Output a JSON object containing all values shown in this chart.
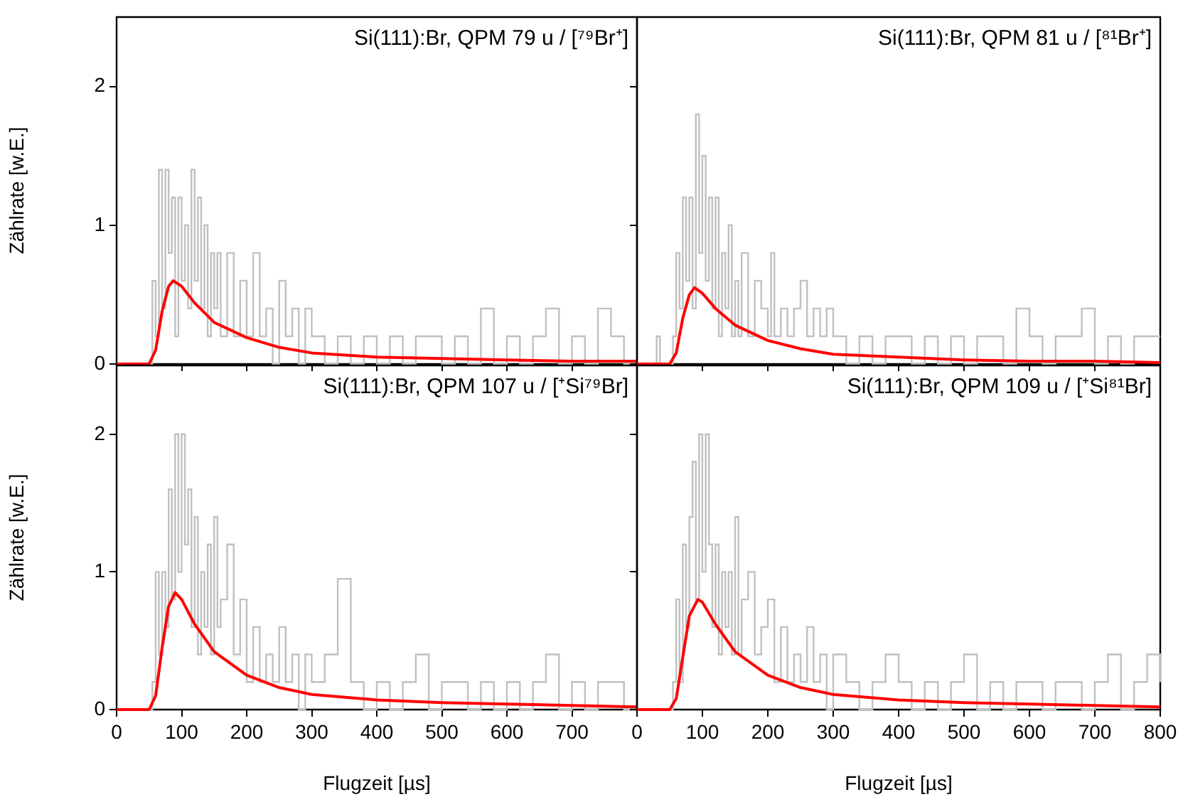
{
  "chart_data": [
    {
      "type": "step",
      "title": "Si(111):Br, QPM 79 u / [⁷⁹Br⁺]",
      "ylabel": "Zählrate [w.E.]",
      "xlim": [
        0,
        800
      ],
      "ylim": [
        0,
        2.5
      ],
      "xticks": [
        0,
        100,
        200,
        300,
        400,
        500,
        600,
        700,
        800
      ],
      "yticks": [
        0,
        1,
        2
      ],
      "tick_labels": "y",
      "grid": false,
      "legend": false,
      "series": [
        {
          "type": "step",
          "color": "#c0c0c0",
          "x": [
            0,
            50,
            55,
            60,
            65,
            70,
            75,
            80,
            85,
            90,
            95,
            100,
            105,
            110,
            115,
            120,
            125,
            130,
            135,
            140,
            145,
            150,
            155,
            160,
            170,
            180,
            190,
            200,
            210,
            220,
            230,
            240,
            250,
            260,
            270,
            280,
            290,
            300,
            320,
            340,
            360,
            380,
            400,
            420,
            440,
            460,
            480,
            500,
            520,
            540,
            560,
            580,
            600,
            620,
            640,
            660,
            680,
            700,
            720,
            740,
            760,
            780,
            800
          ],
          "values": [
            0,
            0,
            0.6,
            0.2,
            1.4,
            0.4,
            1.4,
            0.8,
            1.2,
            0.2,
            1.2,
            0.6,
            1.0,
            0.4,
            1.4,
            0.6,
            1.2,
            0.4,
            1.0,
            0.2,
            0.8,
            0.4,
            0.8,
            0.2,
            0.8,
            0.2,
            0.6,
            0.2,
            0.8,
            0.2,
            0.4,
            0,
            0.6,
            0.2,
            0.4,
            0,
            0.4,
            0.2,
            0,
            0.2,
            0,
            0.2,
            0,
            0.2,
            0,
            0.2,
            0.2,
            0,
            0.2,
            0,
            0.4,
            0,
            0.2,
            0,
            0.2,
            0.4,
            0,
            0.2,
            0,
            0.4,
            0.2,
            0,
            0.2
          ]
        },
        {
          "type": "line",
          "color": "#ff0000",
          "x": [
            0,
            50,
            60,
            70,
            80,
            87,
            100,
            120,
            150,
            200,
            250,
            300,
            400,
            500,
            600,
            700,
            800
          ],
          "values": [
            0,
            0,
            0.1,
            0.38,
            0.56,
            0.6,
            0.56,
            0.44,
            0.3,
            0.19,
            0.12,
            0.08,
            0.05,
            0.04,
            0.03,
            0.02,
            0.02
          ]
        }
      ]
    },
    {
      "type": "step",
      "title": "Si(111):Br, QPM 81 u / [⁸¹Br⁺]",
      "xlim": [
        0,
        800
      ],
      "ylim": [
        0,
        2.5
      ],
      "xticks": [
        0,
        100,
        200,
        300,
        400,
        500,
        600,
        700,
        800
      ],
      "yticks": [
        0,
        1,
        2
      ],
      "tick_labels": false,
      "grid": false,
      "legend": false,
      "series": [
        {
          "type": "step",
          "color": "#c0c0c0",
          "x": [
            0,
            30,
            35,
            50,
            55,
            60,
            65,
            70,
            75,
            80,
            85,
            90,
            95,
            100,
            105,
            110,
            115,
            120,
            125,
            130,
            135,
            140,
            145,
            150,
            155,
            160,
            170,
            180,
            190,
            200,
            205,
            210,
            220,
            230,
            240,
            250,
            260,
            270,
            280,
            290,
            300,
            320,
            340,
            360,
            380,
            400,
            420,
            440,
            460,
            480,
            500,
            520,
            540,
            560,
            580,
            600,
            620,
            640,
            660,
            680,
            700,
            720,
            740,
            760,
            780,
            800
          ],
          "values": [
            0,
            0.2,
            0,
            0,
            0.2,
            0.8,
            0.4,
            1.2,
            0.6,
            1.2,
            0.4,
            1.8,
            0.8,
            1.5,
            0.6,
            1.2,
            0.4,
            1.2,
            0.2,
            0.8,
            0.4,
            1.0,
            0.2,
            0.6,
            0.2,
            0.8,
            0.2,
            0.6,
            0.4,
            0.2,
            0.8,
            0.2,
            0.4,
            0.2,
            0.4,
            0.6,
            0.2,
            0.4,
            0.2,
            0.4,
            0.2,
            0,
            0.2,
            0,
            0.2,
            0.2,
            0,
            0.2,
            0,
            0.2,
            0,
            0.2,
            0.2,
            0,
            0.4,
            0.2,
            0,
            0.2,
            0.2,
            0.4,
            0,
            0.2,
            0,
            0.2,
            0.2,
            0.2
          ]
        },
        {
          "type": "line",
          "color": "#ff0000",
          "x": [
            0,
            50,
            60,
            70,
            80,
            88,
            100,
            120,
            150,
            200,
            250,
            300,
            400,
            500,
            600,
            700,
            800
          ],
          "values": [
            0,
            0,
            0.08,
            0.33,
            0.5,
            0.55,
            0.51,
            0.4,
            0.28,
            0.17,
            0.11,
            0.07,
            0.05,
            0.03,
            0.02,
            0.02,
            0.01
          ]
        }
      ]
    },
    {
      "type": "step",
      "title": "Si(111):Br, QPM 107 u / [⁺Si⁷⁹Br]",
      "xlabel": "Flugzeit [µs]",
      "ylabel": "Zählrate [w.E.]",
      "xlim": [
        0,
        800
      ],
      "ylim": [
        0,
        2.5
      ],
      "xticks": [
        0,
        100,
        200,
        300,
        400,
        500,
        600,
        700,
        {
          "value": 800,
          "label": null
        }
      ],
      "yticks": [
        0,
        1,
        2
      ],
      "grid": false,
      "legend": false,
      "series": [
        {
          "type": "step",
          "color": "#c0c0c0",
          "x": [
            0,
            50,
            55,
            60,
            65,
            70,
            75,
            80,
            85,
            90,
            95,
            100,
            105,
            110,
            115,
            120,
            125,
            130,
            135,
            140,
            145,
            150,
            155,
            160,
            170,
            180,
            190,
            200,
            210,
            220,
            230,
            240,
            250,
            260,
            270,
            280,
            290,
            300,
            320,
            340,
            360,
            380,
            400,
            420,
            440,
            460,
            480,
            500,
            520,
            540,
            560,
            580,
            600,
            620,
            640,
            660,
            680,
            700,
            720,
            740,
            760,
            780,
            800
          ],
          "values": [
            0,
            0,
            0.2,
            1.0,
            0.4,
            1.0,
            0.6,
            1.6,
            0.8,
            2,
            1.0,
            2,
            1.2,
            1.6,
            0.6,
            1.4,
            0.4,
            1.0,
            0.6,
            1.2,
            0.4,
            1.4,
            0.6,
            0.8,
            1.2,
            0.4,
            0.8,
            0.2,
            0.6,
            0.2,
            0.4,
            0.2,
            0.6,
            0.2,
            0.4,
            0,
            0.4,
            0.2,
            0.4,
            0.95,
            0.2,
            0,
            0.2,
            0,
            0.2,
            0.4,
            0,
            0.2,
            0.2,
            0,
            0.2,
            0,
            0.2,
            0,
            0.2,
            0.4,
            0,
            0.2,
            0,
            0.2,
            0.2,
            0,
            0.2
          ]
        },
        {
          "type": "line",
          "color": "#ff0000",
          "x": [
            0,
            50,
            60,
            70,
            80,
            90,
            100,
            120,
            150,
            200,
            250,
            300,
            400,
            500,
            600,
            700,
            800
          ],
          "values": [
            0,
            0,
            0.1,
            0.45,
            0.75,
            0.85,
            0.8,
            0.62,
            0.42,
            0.25,
            0.16,
            0.11,
            0.07,
            0.05,
            0.04,
            0.03,
            0.02
          ]
        }
      ]
    },
    {
      "type": "step",
      "title": "Si(111):Br, QPM 109 u / [⁺Si⁸¹Br]",
      "xlabel": "Flugzeit [µs]",
      "xlim": [
        0,
        800
      ],
      "ylim": [
        0,
        2.5
      ],
      "xticks": [
        0,
        100,
        200,
        300,
        400,
        500,
        600,
        700,
        800
      ],
      "yticks": [
        0,
        1,
        2
      ],
      "tick_labels": "x",
      "grid": false,
      "legend": false,
      "series": [
        {
          "type": "step",
          "color": "#c0c0c0",
          "x": [
            0,
            50,
            55,
            60,
            65,
            70,
            75,
            80,
            85,
            90,
            95,
            100,
            105,
            110,
            115,
            120,
            125,
            130,
            135,
            140,
            145,
            150,
            155,
            160,
            170,
            180,
            190,
            200,
            210,
            220,
            230,
            240,
            250,
            260,
            270,
            280,
            290,
            300,
            320,
            340,
            360,
            380,
            400,
            420,
            440,
            460,
            480,
            500,
            520,
            540,
            560,
            580,
            600,
            620,
            640,
            660,
            680,
            700,
            720,
            740,
            760,
            780,
            800
          ],
          "values": [
            0,
            0,
            0.2,
            0.8,
            0.2,
            1.2,
            0.6,
            1.4,
            1.8,
            0.8,
            2,
            1.0,
            2,
            1.2,
            0.6,
            1.2,
            0.4,
            1.0,
            0.6,
            1.0,
            0.4,
            1.4,
            0.4,
            0.8,
            1.0,
            0.4,
            0.6,
            0.8,
            0.2,
            0.6,
            0.2,
            0.4,
            0.2,
            0.6,
            0.2,
            0.4,
            0,
            0.4,
            0.2,
            0,
            0.2,
            0.4,
            0.2,
            0,
            0.2,
            0,
            0.2,
            0.4,
            0,
            0.2,
            0,
            0.2,
            0.2,
            0,
            0.2,
            0.2,
            0,
            0.2,
            0.4,
            0,
            0.2,
            0.4,
            0.2
          ]
        },
        {
          "type": "line",
          "color": "#ff0000",
          "x": [
            0,
            50,
            60,
            70,
            80,
            93,
            100,
            120,
            150,
            200,
            250,
            300,
            400,
            500,
            600,
            700,
            800
          ],
          "values": [
            0,
            0,
            0.08,
            0.38,
            0.68,
            0.8,
            0.78,
            0.62,
            0.42,
            0.25,
            0.16,
            0.11,
            0.07,
            0.05,
            0.04,
            0.03,
            0.02
          ]
        }
      ]
    }
  ]
}
